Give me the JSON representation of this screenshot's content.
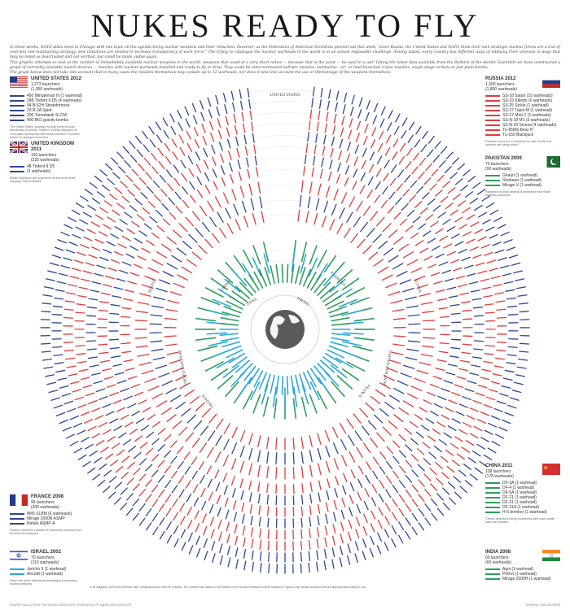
{
  "title": "NUKES READY TO FLY",
  "intro": [
    "In these weeks, NATO allies meet in Chicago with one topic on the agenda being nuclear weapons and their reduction. However, as the Federation of American Scientists pointed out this week, \"since Russia, the United States and NATO think their own strategic nuclear forces are a tool of restraint and maintaining strategy, new initiatives are needed to increase transparency of each force.\" The trying to catalogue the nuclear warheads in the world is in an almost impossible challenge. Among states, every country has different ways of lobbying their arsenals in ways that may be listed as deactivated and not verified, but could be made viable again.",
    "This graphic attempts to look at the number of immediately available nuclear weapons in the world, weapons that could at a very short notice — because that is the point — be used in a war. Taking the latest data available from the Bulletin of the Atomic Scientists we have constructed a graph of currently available launch devices — missiles with nuclear warheads installed and ready to fly or drop. They could be intercontinental ballistic missiles, submarine-, air- or land-launched cruise missiles, single stage rockets or just plain bombs.",
    "The graph below does not take into account that in many cases the missiles themselves may contain up to 12 warheads, nor does it take into account the use or life/tonnage of the weapons themselves."
  ],
  "colors": {
    "usa": "#2f4891",
    "russia": "#e03c3c",
    "asia_green": "#2e9e58",
    "asia_cyan": "#2aa8d8",
    "ring_bg": "#ececf2"
  },
  "rings": [
    {
      "label": "UNITED STATES",
      "color": "#2f4891",
      "count": 180
    },
    {
      "label": "",
      "color": "#2f4891",
      "count": 170
    },
    {
      "label": "",
      "color": "#e03c3c",
      "count": 160
    },
    {
      "label": "",
      "color": "#e03c3c",
      "count": 150
    },
    {
      "label": "",
      "color": "#2f4891",
      "count": 140
    },
    {
      "label": "",
      "color": "#e03c3c",
      "count": 130
    },
    {
      "label": "",
      "color": "#2f4891",
      "count": 120
    },
    {
      "label": "",
      "color": "#e03c3c",
      "count": 110
    },
    {
      "label": "RUSSIA",
      "color": "#e03c3c",
      "count": 100
    },
    {
      "label": "UNITED KINGDOM",
      "color": "#2f4891",
      "count": 90
    },
    {
      "label": "FRANCE",
      "color": "#e03c3c",
      "count": 80
    },
    {
      "label": "CHINA",
      "color": "#2e9e58",
      "count": 50
    },
    {
      "label": "ISRAEL",
      "color": "#2aa8d8",
      "count": 40
    }
  ],
  "ring_labels": {
    "us_top": "UNITED STATES",
    "russia_left": "RUSSIA",
    "russia_right": "RUSSIA",
    "uk_left": "UNITED KINGDOM",
    "uk_right": "UNITED KINGDOM",
    "france_left": "FRANCE",
    "france_right": "FRANCE",
    "china": "CHINA",
    "pakistan": "PAKISTAN",
    "india": "INDIA",
    "israel": "ISRAEL"
  },
  "panels": {
    "usa": {
      "title": "UNITED STATES 2012",
      "launchers": "1,273 launchers",
      "warheads": "(1,950 warheads)",
      "items": [
        "450 Minuteman III (1 warhead)",
        "288 Trident II D5 (4 warheads)",
        "94 B-52H Stratofortress",
        "20 B-2A Spirit",
        "200 Tomahawk SLCM",
        "400 B61 gravity bombs"
      ],
      "note": "The United States' strategic nuclear forces include Minuteman III ICBMs, Trident II SLBMs deployed on Ohio-class submarines and heavy bombers. Numbers based on deployed launchers."
    },
    "uk": {
      "title": "UNITED KINGDOM 2011",
      "launchers": "160 launchers",
      "warheads": "(225 warheads)",
      "items": [
        "48 Trident II D5",
        "(3 warheads)"
      ],
      "note": "Britain maintains one submarine at sea at all times carrying Trident missiles."
    },
    "russia": {
      "title": "RUSSIA 2012",
      "launchers": "1,300 launchers",
      "warheads": "(1,800 warheads)",
      "items": [
        "SS-18 Satan (10 warheads)",
        "SS-19 Stiletto (6 warheads)",
        "SS-25 Sickle (1 warhead)",
        "SS-27 Topol-M (1 warhead)",
        "SS-27 Mod 2 (3 warheads)",
        "SS-N-18 M1 (3 warheads)",
        "SS-N-23 Sineva (4 warheads)",
        "Tu-95MS Bear H",
        "Tu-160 Blackjack"
      ],
      "note": "Russia's forces are in transition as older Soviet-era systems are being retired."
    },
    "pakistan": {
      "title": "PAKISTAN 2009",
      "launchers": "70 launchers",
      "warheads": "(90 warheads)",
      "items": [
        "Ghauri (1 warhead)",
        "Shaheen (1 warhead)",
        "Mirage V (1 warhead)"
      ],
      "note": "Pakistan's nuclear arsenal is estimated from fissile material production."
    },
    "france": {
      "title": "FRANCE 2008",
      "launchers": "96 launchers",
      "warheads": "(300 warheads)",
      "items": [
        "M45 SLBM (6 warheads)",
        "Mirage 2000N ASMP",
        "Rafale ASMP-A"
      ],
      "note": "France's deterrent consists of submarine-launched and air-delivered weapons."
    },
    "israel": {
      "title": "ISRAEL 2002",
      "launchers": "70 launchers",
      "warheads": "(110 warheads)",
      "items": [
        "Jericho II (1 warhead)",
        "Aircraft (1 warhead)"
      ],
      "note": "Israel has never officially acknowledged possessing nuclear weapons."
    },
    "china": {
      "title": "CHINA 2011",
      "launchers": "138 launchers",
      "warheads": "(178 warheads)",
      "items": [
        "DF-3A (1 warhead)",
        "DF-4 (1 warhead)",
        "DF-5A (1 warhead)",
        "DF-21 (1 warhead)",
        "DF-31 (1 warhead)",
        "DF-31A (1 warhead)",
        "H-6 bomber (1 warhead)"
      ],
      "note": "China's arsenal is being modernised with road-mobile solid-fuel missiles."
    },
    "india": {
      "title": "INDIA 2008",
      "launchers": "60 launchers",
      "warheads": "(60 warheads)",
      "items": [
        "Agni (1 warhead)",
        "Prithvi (1 warhead)",
        "Mirage 2000H (1 warhead)"
      ],
      "note": "India's nuclear doctrine is based on credible minimum deterrence."
    }
  },
  "footnote": "In all diagrams, NATO/US Defense Dept. designations are used for missiles. The numbers are based on the Bulletin of the Atomic Scientists Nuclear Notebook. Figures only include weapons that are deployed and ready for use.",
  "footer_left": "SOURCE: BULLETIN OF THE ATOMIC SCIENTISTS, FEDERATION OF AMERICAN SCIENTISTS",
  "footer_right": "GRAPHIC: DAG OHLSSON"
}
